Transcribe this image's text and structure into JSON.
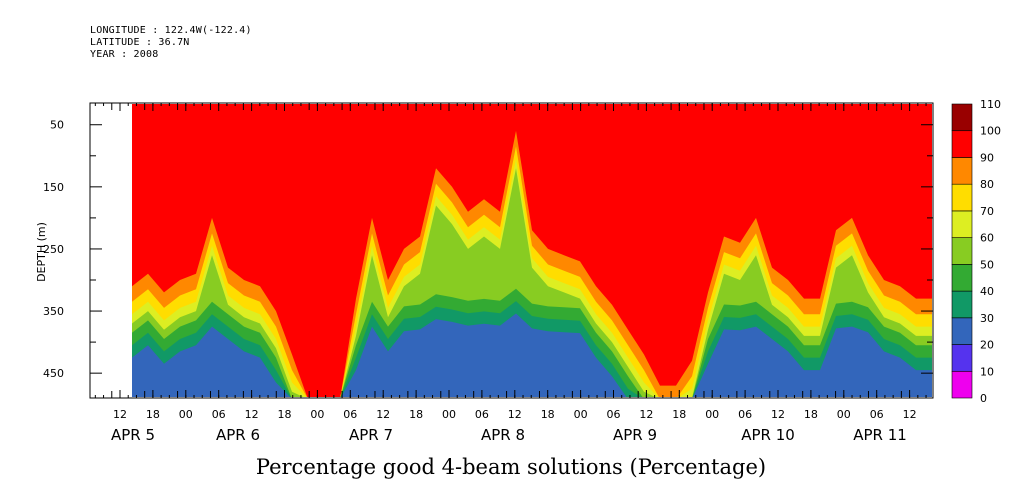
{
  "header": {
    "longitude": "LONGITUDE : 122.4W(-122.4)",
    "latitude": "LATITUDE : 36.7N",
    "year": "YEAR : 2008"
  },
  "chart_data": {
    "type": "heatmap",
    "title": "Percentage good 4-beam solutions (Percentage)",
    "ylabel": "DEPTH (m)",
    "xlabel": "",
    "ylim": [
      490,
      15
    ],
    "y_ticks": [
      50,
      150,
      250,
      350,
      450
    ],
    "x_hour_ticks": [
      "12",
      "18",
      "00",
      "06",
      "12",
      "18",
      "00",
      "06",
      "12",
      "18",
      "00",
      "06",
      "12",
      "18",
      "00",
      "06",
      "12",
      "18",
      "00",
      "06",
      "12",
      "18",
      "00",
      "06",
      "12"
    ],
    "x_date_labels": [
      "APR  5",
      "APR  6",
      "APR  7",
      "APR  8",
      "APR  9",
      "APR 10",
      "APR 11"
    ],
    "colorbar": {
      "levels": [
        "0",
        "10",
        "20",
        "30",
        "40",
        "50",
        "60",
        "70",
        "80",
        "90",
        "100",
        "110"
      ],
      "colors": [
        "#ee00ee",
        "#5533ee",
        "#3366bb",
        "#119966",
        "#33aa33",
        "#88cc22",
        "#ddee22",
        "#ffdd00",
        "#ff8800",
        "#ff0000",
        "#990000"
      ]
    },
    "profiles": [
      {
        "t": 0.0,
        "d": 310
      },
      {
        "t": 0.02,
        "d": 290
      },
      {
        "t": 0.04,
        "d": 320
      },
      {
        "t": 0.06,
        "d": 300
      },
      {
        "t": 0.08,
        "d": 290
      },
      {
        "t": 0.1,
        "d": 200
      },
      {
        "t": 0.12,
        "d": 280
      },
      {
        "t": 0.14,
        "d": 300
      },
      {
        "t": 0.16,
        "d": 310
      },
      {
        "t": 0.18,
        "d": 350
      },
      {
        "t": 0.2,
        "d": 420
      },
      {
        "t": 0.22,
        "d": 500
      },
      {
        "t": 0.26,
        "d": 500
      },
      {
        "t": 0.28,
        "d": 330
      },
      {
        "t": 0.3,
        "d": 200
      },
      {
        "t": 0.32,
        "d": 300
      },
      {
        "t": 0.34,
        "d": 250
      },
      {
        "t": 0.36,
        "d": 230
      },
      {
        "t": 0.38,
        "d": 120
      },
      {
        "t": 0.4,
        "d": 150
      },
      {
        "t": 0.42,
        "d": 190
      },
      {
        "t": 0.44,
        "d": 170
      },
      {
        "t": 0.46,
        "d": 190
      },
      {
        "t": 0.48,
        "d": 60
      },
      {
        "t": 0.5,
        "d": 220
      },
      {
        "t": 0.52,
        "d": 250
      },
      {
        "t": 0.54,
        "d": 260
      },
      {
        "t": 0.56,
        "d": 270
      },
      {
        "t": 0.58,
        "d": 310
      },
      {
        "t": 0.6,
        "d": 340
      },
      {
        "t": 0.62,
        "d": 380
      },
      {
        "t": 0.64,
        "d": 420
      },
      {
        "t": 0.66,
        "d": 470
      },
      {
        "t": 0.68,
        "d": 470
      },
      {
        "t": 0.7,
        "d": 430
      },
      {
        "t": 0.72,
        "d": 320
      },
      {
        "t": 0.74,
        "d": 230
      },
      {
        "t": 0.76,
        "d": 240
      },
      {
        "t": 0.78,
        "d": 200
      },
      {
        "t": 0.8,
        "d": 280
      },
      {
        "t": 0.82,
        "d": 300
      },
      {
        "t": 0.84,
        "d": 330
      },
      {
        "t": 0.86,
        "d": 330
      },
      {
        "t": 0.88,
        "d": 220
      },
      {
        "t": 0.9,
        "d": 200
      },
      {
        "t": 0.92,
        "d": 260
      },
      {
        "t": 0.94,
        "d": 300
      },
      {
        "t": 0.96,
        "d": 310
      },
      {
        "t": 0.98,
        "d": 330
      },
      {
        "t": 1.0,
        "d": 330
      }
    ]
  }
}
